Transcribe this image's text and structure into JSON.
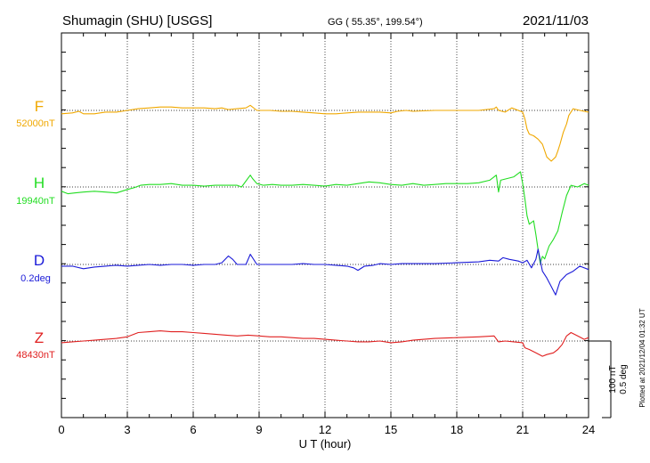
{
  "header": {
    "station": "Shumagin (SHU)  [USGS]",
    "coords": "GG ( 55.35°, 199.54°)",
    "date": "2021/11/03"
  },
  "footer": {
    "plotted": "Plotted at 2021/12/04 01:32 UT"
  },
  "scale": {
    "label_nt": "100 nT",
    "label_deg": "0.5 deg"
  },
  "chart_data": {
    "type": "line",
    "xlabel": "U T (hour)",
    "xlim": [
      0,
      24
    ],
    "xticks": [
      "0",
      "3",
      "6",
      "9",
      "12",
      "15",
      "18",
      "21",
      "24"
    ],
    "grid": true,
    "series": [
      {
        "name": "F",
        "baseline_label": "52000nT",
        "color": "#f0a800",
        "points": [
          [
            0,
            4
          ],
          [
            0.5,
            3
          ],
          [
            0.8,
            1
          ],
          [
            1,
            4
          ],
          [
            1.5,
            4
          ],
          [
            2,
            2
          ],
          [
            2.5,
            2
          ],
          [
            3,
            0
          ],
          [
            3.5,
            -2
          ],
          [
            4,
            -3
          ],
          [
            4.5,
            -4
          ],
          [
            5,
            -4
          ],
          [
            5.5,
            -3
          ],
          [
            6,
            -3
          ],
          [
            6.5,
            -3
          ],
          [
            7,
            -2
          ],
          [
            7.3,
            -3
          ],
          [
            7.6,
            -1
          ],
          [
            8,
            -2
          ],
          [
            8.4,
            -3
          ],
          [
            8.6,
            -6
          ],
          [
            8.9,
            0
          ],
          [
            9.5,
            0
          ],
          [
            10,
            1
          ],
          [
            10.5,
            1
          ],
          [
            11,
            2
          ],
          [
            11.5,
            3
          ],
          [
            12,
            4
          ],
          [
            12.5,
            4
          ],
          [
            13,
            3
          ],
          [
            13.5,
            2
          ],
          [
            14,
            2
          ],
          [
            14.5,
            2
          ],
          [
            15,
            3
          ],
          [
            15.3,
            1
          ],
          [
            15.7,
            0
          ],
          [
            16,
            1
          ],
          [
            17,
            0
          ],
          [
            18,
            0
          ],
          [
            19,
            0
          ],
          [
            19.7,
            -2
          ],
          [
            19.8,
            -4
          ],
          [
            19.9,
            0
          ],
          [
            20.2,
            2
          ],
          [
            20.5,
            -3
          ],
          [
            20.8,
            0
          ],
          [
            21,
            2
          ],
          [
            21.1,
            10
          ],
          [
            21.2,
            22
          ],
          [
            21.3,
            28
          ],
          [
            21.5,
            30
          ],
          [
            21.7,
            34
          ],
          [
            21.9,
            40
          ],
          [
            22.1,
            55
          ],
          [
            22.3,
            60
          ],
          [
            22.5,
            55
          ],
          [
            22.6,
            48
          ],
          [
            22.7,
            40
          ],
          [
            22.85,
            26
          ],
          [
            23,
            16
          ],
          [
            23.1,
            6
          ],
          [
            23.3,
            -2
          ],
          [
            23.6,
            0
          ],
          [
            24,
            2
          ]
        ]
      },
      {
        "name": "H",
        "baseline_label": "19940nT",
        "color": "#22dd22",
        "points": [
          [
            0,
            5
          ],
          [
            0.3,
            8
          ],
          [
            0.6,
            7
          ],
          [
            1,
            6
          ],
          [
            1.5,
            5
          ],
          [
            2,
            6
          ],
          [
            2.5,
            7
          ],
          [
            3,
            3
          ],
          [
            3.3,
            1
          ],
          [
            3.6,
            -2
          ],
          [
            4,
            -3
          ],
          [
            4.5,
            -3
          ],
          [
            5,
            -4
          ],
          [
            5.5,
            -2
          ],
          [
            6,
            -2
          ],
          [
            6.5,
            -1
          ],
          [
            7,
            -2
          ],
          [
            7.5,
            -2
          ],
          [
            8,
            -2
          ],
          [
            8.2,
            0
          ],
          [
            8.6,
            -14
          ],
          [
            8.7,
            -10
          ],
          [
            8.9,
            -4
          ],
          [
            9.2,
            -2
          ],
          [
            9.6,
            -3
          ],
          [
            10,
            -2
          ],
          [
            10.5,
            -2
          ],
          [
            11,
            -3
          ],
          [
            11.5,
            -2
          ],
          [
            12,
            -1
          ],
          [
            12.5,
            -3
          ],
          [
            13,
            -2
          ],
          [
            13.5,
            -4
          ],
          [
            14,
            -6
          ],
          [
            14.5,
            -5
          ],
          [
            15,
            -3
          ],
          [
            15.5,
            -2
          ],
          [
            16,
            -4
          ],
          [
            16.5,
            -2
          ],
          [
            17,
            -3
          ],
          [
            17.5,
            -4
          ],
          [
            18,
            -4
          ],
          [
            18.5,
            -4
          ],
          [
            19,
            -5
          ],
          [
            19.5,
            -8
          ],
          [
            19.8,
            -14
          ],
          [
            19.9,
            6
          ],
          [
            20,
            -8
          ],
          [
            20.3,
            -10
          ],
          [
            20.6,
            -12
          ],
          [
            20.9,
            -18
          ],
          [
            21,
            -4
          ],
          [
            21.1,
            14
          ],
          [
            21.2,
            34
          ],
          [
            21.3,
            44
          ],
          [
            21.5,
            40
          ],
          [
            21.6,
            56
          ],
          [
            21.7,
            74
          ],
          [
            21.8,
            90
          ],
          [
            21.9,
            82
          ],
          [
            22,
            85
          ],
          [
            22.2,
            70
          ],
          [
            22.4,
            62
          ],
          [
            22.6,
            52
          ],
          [
            22.8,
            30
          ],
          [
            23,
            10
          ],
          [
            23.2,
            -2
          ],
          [
            23.5,
            0
          ],
          [
            23.8,
            -4
          ],
          [
            24,
            -2
          ]
        ]
      },
      {
        "name": "D",
        "baseline_label": "0.2deg",
        "color": "#1a1ad8",
        "points": [
          [
            0,
            2
          ],
          [
            0.5,
            2
          ],
          [
            1,
            5
          ],
          [
            1.5,
            3
          ],
          [
            2,
            2
          ],
          [
            2.5,
            1
          ],
          [
            3,
            2
          ],
          [
            3.5,
            1
          ],
          [
            4,
            0
          ],
          [
            4.5,
            1
          ],
          [
            5,
            0
          ],
          [
            5.5,
            0
          ],
          [
            6,
            1
          ],
          [
            6.5,
            0
          ],
          [
            7,
            0
          ],
          [
            7.3,
            -2
          ],
          [
            7.6,
            -10
          ],
          [
            7.8,
            -6
          ],
          [
            8,
            0
          ],
          [
            8.4,
            0
          ],
          [
            8.6,
            -12
          ],
          [
            8.9,
            0
          ],
          [
            9.5,
            0
          ],
          [
            10,
            0
          ],
          [
            10.5,
            0
          ],
          [
            11,
            -1
          ],
          [
            11.5,
            0
          ],
          [
            12,
            0
          ],
          [
            12.5,
            1
          ],
          [
            13,
            2
          ],
          [
            13.3,
            4
          ],
          [
            13.5,
            7
          ],
          [
            13.8,
            2
          ],
          [
            14.2,
            1
          ],
          [
            14.5,
            -1
          ],
          [
            15,
            0
          ],
          [
            15.5,
            -1
          ],
          [
            16,
            -1
          ],
          [
            17,
            -1
          ],
          [
            18,
            -2
          ],
          [
            19,
            -3
          ],
          [
            19.5,
            -5
          ],
          [
            19.9,
            -4
          ],
          [
            20.1,
            -8
          ],
          [
            20.4,
            -6
          ],
          [
            20.8,
            -4
          ],
          [
            21,
            -2
          ],
          [
            21.2,
            -5
          ],
          [
            21.4,
            4
          ],
          [
            21.6,
            -6
          ],
          [
            21.7,
            -18
          ],
          [
            21.9,
            8
          ],
          [
            22.1,
            16
          ],
          [
            22.3,
            26
          ],
          [
            22.5,
            36
          ],
          [
            22.7,
            20
          ],
          [
            23,
            12
          ],
          [
            23.3,
            8
          ],
          [
            23.6,
            2
          ],
          [
            24,
            6
          ]
        ]
      },
      {
        "name": "Z",
        "baseline_label": "48430nT",
        "color": "#e02020",
        "points": [
          [
            0,
            2
          ],
          [
            0.5,
            1
          ],
          [
            1,
            0
          ],
          [
            1.5,
            -1
          ],
          [
            2,
            -2
          ],
          [
            2.5,
            -3
          ],
          [
            3,
            -5
          ],
          [
            3.5,
            -10
          ],
          [
            4,
            -11
          ],
          [
            4.5,
            -12
          ],
          [
            5,
            -11
          ],
          [
            5.5,
            -11
          ],
          [
            6,
            -10
          ],
          [
            6.5,
            -9
          ],
          [
            7,
            -8
          ],
          [
            7.5,
            -7
          ],
          [
            8,
            -6
          ],
          [
            8.5,
            -7
          ],
          [
            9,
            -6
          ],
          [
            9.5,
            -5
          ],
          [
            10,
            -5
          ],
          [
            10.5,
            -4
          ],
          [
            11,
            -3
          ],
          [
            11.5,
            -3
          ],
          [
            12,
            -2
          ],
          [
            12.5,
            -1
          ],
          [
            13,
            0
          ],
          [
            13.5,
            1
          ],
          [
            14,
            1
          ],
          [
            14.5,
            0
          ],
          [
            15,
            2
          ],
          [
            15.5,
            1
          ],
          [
            16,
            -1
          ],
          [
            17,
            -3
          ],
          [
            18,
            -4
          ],
          [
            19,
            -5
          ],
          [
            19.7,
            -6
          ],
          [
            19.9,
            1
          ],
          [
            20.2,
            0
          ],
          [
            20.6,
            1
          ],
          [
            21,
            2
          ],
          [
            21.1,
            8
          ],
          [
            21.3,
            10
          ],
          [
            21.6,
            14
          ],
          [
            21.9,
            18
          ],
          [
            22.1,
            16
          ],
          [
            22.4,
            14
          ],
          [
            22.6,
            10
          ],
          [
            22.8,
            4
          ],
          [
            23,
            -6
          ],
          [
            23.2,
            -10
          ],
          [
            23.5,
            -6
          ],
          [
            23.8,
            -2
          ],
          [
            24,
            -4
          ]
        ]
      }
    ]
  }
}
